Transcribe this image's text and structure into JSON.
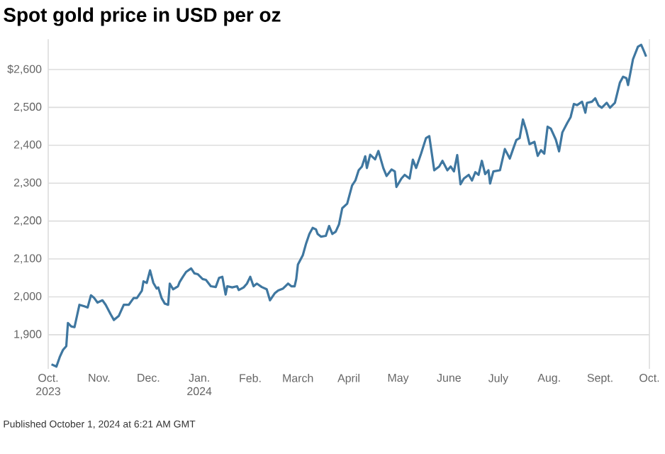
{
  "chart_data": {
    "type": "line",
    "title": "Spot gold price in USD per oz",
    "annotations": [
      "Published October 1, 2024 at 6:21 AM GMT"
    ],
    "x": [
      "2023-10-03",
      "2023-10-06",
      "2023-10-08",
      "2023-10-10",
      "2023-10-12",
      "2023-10-13",
      "2023-10-15",
      "2023-10-17",
      "2023-10-20",
      "2023-10-23",
      "2023-10-25",
      "2023-10-27",
      "2023-10-29",
      "2023-10-31",
      "2023-11-03",
      "2023-11-05",
      "2023-11-08",
      "2023-11-10",
      "2023-11-13",
      "2023-11-16",
      "2023-11-19",
      "2023-11-22",
      "2023-11-24",
      "2023-11-27",
      "2023-11-28",
      "2023-11-30",
      "2023-12-02",
      "2023-12-04",
      "2023-12-06",
      "2023-12-07",
      "2023-12-09",
      "2023-12-11",
      "2023-12-13",
      "2023-12-14",
      "2023-12-16",
      "2023-12-19",
      "2023-12-20",
      "2023-12-22",
      "2023-12-24",
      "2023-12-27",
      "2023-12-29",
      "2023-12-31",
      "2024-01-03",
      "2024-01-05",
      "2024-01-08",
      "2024-01-11",
      "2024-01-13",
      "2024-01-15",
      "2024-01-17",
      "2024-01-18",
      "2024-01-21",
      "2024-01-24",
      "2024-01-25",
      "2024-01-28",
      "2024-01-30",
      "2024-02-01",
      "2024-02-03",
      "2024-02-05",
      "2024-02-08",
      "2024-02-11",
      "2024-02-13",
      "2024-02-16",
      "2024-02-18",
      "2024-02-21",
      "2024-02-24",
      "2024-02-26",
      "2024-02-28",
      "2024-02-29",
      "2024-03-01",
      "2024-03-04",
      "2024-03-06",
      "2024-03-08",
      "2024-03-10",
      "2024-03-12",
      "2024-03-13",
      "2024-03-15",
      "2024-03-18",
      "2024-03-20",
      "2024-03-22",
      "2024-03-24",
      "2024-03-26",
      "2024-03-28",
      "2024-03-31",
      "2024-04-03",
      "2024-04-05",
      "2024-04-07",
      "2024-04-09",
      "2024-04-11",
      "2024-04-12",
      "2024-04-14",
      "2024-04-17",
      "2024-04-19",
      "2024-04-22",
      "2024-04-24",
      "2024-04-27",
      "2024-04-29",
      "2024-04-30",
      "2024-05-03",
      "2024-05-05",
      "2024-05-08",
      "2024-05-10",
      "2024-05-12",
      "2024-05-15",
      "2024-05-18",
      "2024-05-20",
      "2024-05-23",
      "2024-05-26",
      "2024-05-28",
      "2024-05-31",
      "2024-06-02",
      "2024-06-04",
      "2024-06-06",
      "2024-06-08",
      "2024-06-10",
      "2024-06-13",
      "2024-06-15",
      "2024-06-17",
      "2024-06-19",
      "2024-06-21",
      "2024-06-23",
      "2024-06-25",
      "2024-06-26",
      "2024-06-28",
      "2024-07-02",
      "2024-07-05",
      "2024-07-08",
      "2024-07-10",
      "2024-07-12",
      "2024-07-14",
      "2024-07-16",
      "2024-07-18",
      "2024-07-20",
      "2024-07-23",
      "2024-07-25",
      "2024-07-27",
      "2024-07-29",
      "2024-07-31",
      "2024-08-02",
      "2024-08-05",
      "2024-08-07",
      "2024-08-09",
      "2024-08-12",
      "2024-08-14",
      "2024-08-16",
      "2024-08-18",
      "2024-08-21",
      "2024-08-23",
      "2024-08-24",
      "2024-08-27",
      "2024-08-29",
      "2024-08-31",
      "2024-09-02",
      "2024-09-05",
      "2024-09-07",
      "2024-09-10",
      "2024-09-13",
      "2024-09-15",
      "2024-09-17",
      "2024-09-18",
      "2024-09-21",
      "2024-09-24",
      "2024-09-26",
      "2024-09-28",
      "2024-09-29"
    ],
    "series": [
      {
        "color": "#3f77a0",
        "values": [
          1822,
          1816,
          1841,
          1860,
          1870,
          1931,
          1922,
          1920,
          1979,
          1975,
          1972,
          2004,
          1997,
          1985,
          1991,
          1979,
          1954,
          1939,
          1950,
          1979,
          1979,
          1997,
          1997,
          2016,
          2041,
          2037,
          2070,
          2037,
          2022,
          2025,
          1997,
          1982,
          1979,
          2035,
          2020,
          2028,
          2039,
          2053,
          2066,
          2075,
          2062,
          2060,
          2047,
          2045,
          2028,
          2026,
          2050,
          2053,
          2006,
          2028,
          2025,
          2028,
          2018,
          2025,
          2035,
          2053,
          2028,
          2035,
          2026,
          2020,
          1991,
          2010,
          2017,
          2022,
          2035,
          2028,
          2028,
          2047,
          2085,
          2110,
          2141,
          2166,
          2182,
          2178,
          2166,
          2159,
          2161,
          2187,
          2166,
          2172,
          2191,
          2234,
          2246,
          2294,
          2307,
          2334,
          2344,
          2371,
          2340,
          2375,
          2363,
          2385,
          2340,
          2319,
          2336,
          2331,
          2290,
          2312,
          2322,
          2312,
          2362,
          2340,
          2378,
          2419,
          2424,
          2334,
          2344,
          2359,
          2334,
          2344,
          2331,
          2374,
          2297,
          2312,
          2322,
          2307,
          2329,
          2322,
          2359,
          2324,
          2334,
          2299,
          2331,
          2334,
          2390,
          2365,
          2390,
          2414,
          2419,
          2468,
          2440,
          2403,
          2409,
          2372,
          2387,
          2378,
          2449,
          2444,
          2415,
          2384,
          2434,
          2459,
          2474,
          2509,
          2506,
          2515,
          2486,
          2512,
          2515,
          2524,
          2505,
          2499,
          2512,
          2499,
          2512,
          2565,
          2581,
          2577,
          2559,
          2627,
          2660,
          2665,
          2645,
          2634
        ]
      }
    ],
    "xlim": [
      "2023-10-01",
      "2024-10-01"
    ],
    "xticks": [
      {
        "value": "2023-10-01",
        "label": "Oct. 2023"
      },
      {
        "value": "2023-11-01",
        "label": "Nov."
      },
      {
        "value": "2023-12-01",
        "label": "Dec."
      },
      {
        "value": "2024-01-01",
        "label": "Jan. 2024"
      },
      {
        "value": "2024-02-01",
        "label": "Feb."
      },
      {
        "value": "2024-03-01",
        "label": "March"
      },
      {
        "value": "2024-04-01",
        "label": "April"
      },
      {
        "value": "2024-05-01",
        "label": "May"
      },
      {
        "value": "2024-06-01",
        "label": "June"
      },
      {
        "value": "2024-07-01",
        "label": "July"
      },
      {
        "value": "2024-08-01",
        "label": "Aug."
      },
      {
        "value": "2024-09-01",
        "label": "Sept."
      },
      {
        "value": "2024-10-01",
        "label": "Oct."
      }
    ],
    "ylim": [
      1810,
      2680
    ],
    "yticks": [
      {
        "value": 1900,
        "label": "1,900"
      },
      {
        "value": 2000,
        "label": "2,000"
      },
      {
        "value": 2100,
        "label": "2,100"
      },
      {
        "value": 2200,
        "label": "2,200"
      },
      {
        "value": 2300,
        "label": "2,300"
      },
      {
        "value": 2400,
        "label": "2,400"
      },
      {
        "value": 2500,
        "label": "2,500"
      },
      {
        "value": 2600,
        "label": "$2,600"
      }
    ],
    "grid": "y"
  }
}
